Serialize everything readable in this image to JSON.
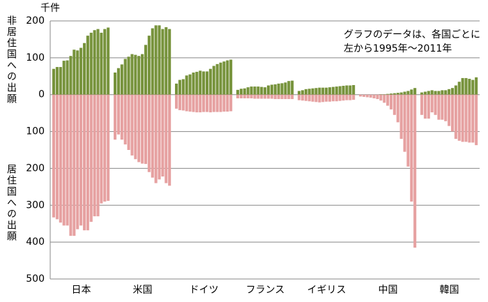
{
  "chart_data": {
    "type": "bar",
    "unit_label": "千件",
    "annotation": [
      "グラフのデータは、各国ごとに",
      "左から1995年～2011年"
    ],
    "categories": [
      "日本",
      "米国",
      "ドイツ",
      "フランス",
      "イギリス",
      "中国",
      "韓国"
    ],
    "series": [
      {
        "name": "非居住国への出願",
        "color": "#77933c",
        "values": [
          [
            70,
            75,
            75,
            92,
            93,
            105,
            122,
            120,
            127,
            140,
            160,
            168,
            175,
            178,
            168,
            178,
            182
          ],
          [
            60,
            72,
            82,
            97,
            103,
            110,
            108,
            105,
            110,
            135,
            160,
            180,
            188,
            188,
            178,
            183,
            178
          ],
          [
            30,
            40,
            42,
            52,
            55,
            60,
            62,
            65,
            63,
            63,
            70,
            78,
            83,
            87,
            90,
            93,
            95
          ],
          [
            13,
            16,
            17,
            20,
            22,
            22,
            22,
            21,
            20,
            25,
            27,
            28,
            30,
            31,
            33,
            37,
            38
          ],
          [
            10,
            12,
            15,
            16,
            17,
            18,
            19,
            19,
            19,
            20,
            21,
            22,
            23,
            24,
            25,
            25,
            26
          ],
          [
            0,
            0,
            0,
            0,
            0,
            0,
            1,
            1,
            2,
            3,
            4,
            5,
            6,
            8,
            10,
            14,
            18
          ],
          [
            6,
            8,
            10,
            12,
            10,
            10,
            12,
            12,
            15,
            18,
            25,
            35,
            45,
            45,
            43,
            40,
            47
          ]
        ]
      },
      {
        "name": "居住国への出願",
        "color": "#e6a1a1",
        "values": [
          [
            -333,
            -338,
            -347,
            -355,
            -355,
            -383,
            -383,
            -365,
            -355,
            -368,
            -368,
            -345,
            -330,
            -330,
            -295,
            -290,
            -288
          ],
          [
            -122,
            -108,
            -122,
            -135,
            -150,
            -165,
            -175,
            -183,
            -187,
            -188,
            -210,
            -225,
            -240,
            -230,
            -222,
            -240,
            -247
          ],
          [
            -38,
            -42,
            -43,
            -45,
            -46,
            -47,
            -48,
            -48,
            -47,
            -47,
            -48,
            -47,
            -47,
            -47,
            -46,
            -46,
            -45
          ],
          [
            -10,
            -10,
            -10,
            -10,
            -10,
            -11,
            -11,
            -11,
            -11,
            -11,
            -11,
            -12,
            -12,
            -12,
            -12,
            -12,
            -12
          ],
          [
            -15,
            -16,
            -17,
            -18,
            -19,
            -20,
            -21,
            -20,
            -19,
            -19,
            -18,
            -18,
            -17,
            -16,
            -15,
            -15,
            -14
          ],
          [
            -5,
            -6,
            -7,
            -8,
            -10,
            -12,
            -16,
            -22,
            -30,
            -40,
            -55,
            -75,
            -120,
            -155,
            -195,
            -290,
            -415
          ],
          [
            -55,
            -65,
            -65,
            -48,
            -55,
            -68,
            -68,
            -72,
            -85,
            -100,
            -120,
            -125,
            -128,
            -128,
            -130,
            -130,
            -137
          ]
        ]
      }
    ],
    "ylim": [
      -500,
      200
    ],
    "yticks": [
      200,
      100,
      0,
      {
        "value": -100,
        "label": "100"
      },
      {
        "value": -200,
        "label": "200"
      },
      {
        "value": -300,
        "label": "300"
      },
      {
        "value": -400,
        "label": "400"
      },
      {
        "value": -500,
        "label": "500"
      }
    ],
    "grid": true
  }
}
